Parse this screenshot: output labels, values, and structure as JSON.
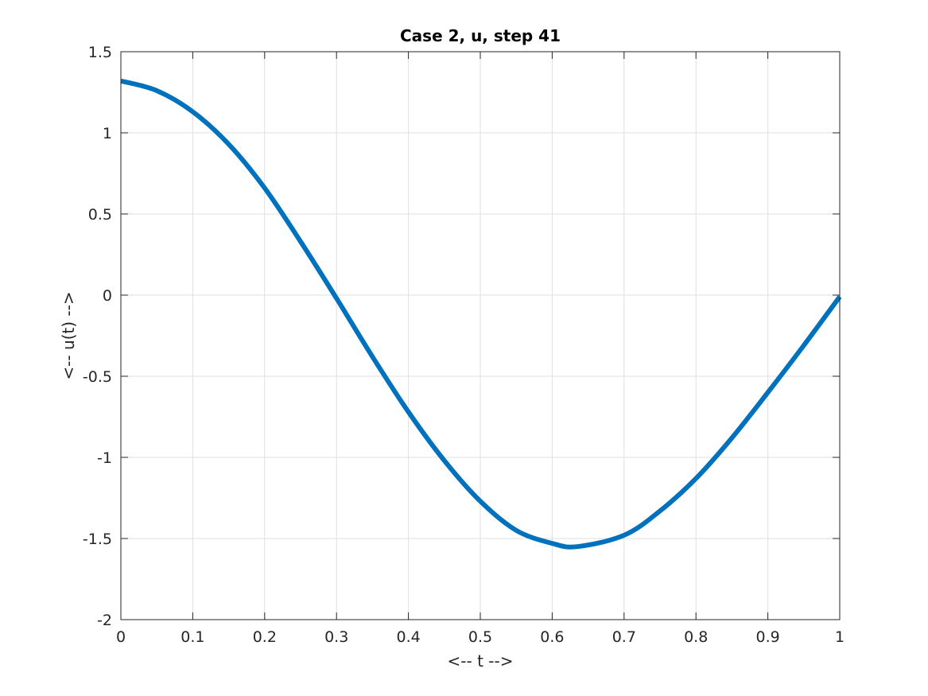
{
  "chart_data": {
    "type": "line",
    "title": "Case 2, u, step 41",
    "xlabel": "<-- t -->",
    "ylabel": "<-- u(t) -->",
    "xlim": [
      0,
      1
    ],
    "ylim": [
      -2,
      1.5
    ],
    "xticks": [
      0,
      0.1,
      0.2,
      0.3,
      0.4,
      0.5,
      0.6,
      0.7,
      0.8,
      0.9,
      1
    ],
    "xtick_labels": [
      "0",
      "0.1",
      "0.2",
      "0.3",
      "0.4",
      "0.5",
      "0.6",
      "0.7",
      "0.8",
      "0.9",
      "1"
    ],
    "yticks": [
      -2,
      -1.5,
      -1,
      -0.5,
      0,
      0.5,
      1,
      1.5
    ],
    "ytick_labels": [
      "-2",
      "-1.5",
      "-1",
      "-0.5",
      "0",
      "0.5",
      "1",
      "1.5"
    ],
    "grid": true,
    "series": [
      {
        "color": "#0072BD",
        "x": [
          0,
          0.05,
          0.1,
          0.15,
          0.2,
          0.25,
          0.3,
          0.35,
          0.4,
          0.45,
          0.5,
          0.55,
          0.6,
          0.635,
          0.7,
          0.75,
          0.8,
          0.85,
          0.9,
          0.95,
          1
        ],
        "y": [
          1.32,
          1.26,
          1.13,
          0.93,
          0.66,
          0.33,
          -0.02,
          -0.38,
          -0.72,
          -1.02,
          -1.27,
          -1.45,
          -1.53,
          -1.55,
          -1.48,
          -1.33,
          -1.13,
          -0.88,
          -0.6,
          -0.31,
          -0.01
        ]
      }
    ]
  }
}
